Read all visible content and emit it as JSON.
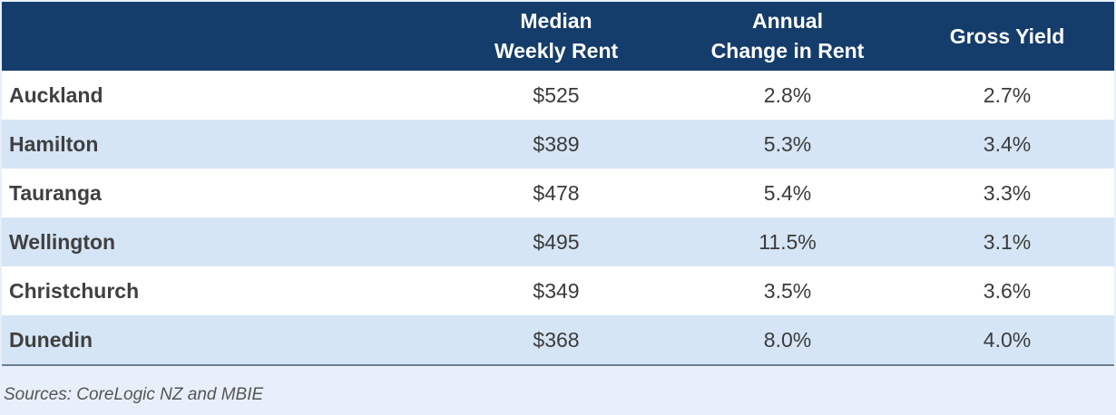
{
  "chart_data": {
    "type": "table",
    "columns": [
      "",
      "Median\nWeekly Rent",
      "Annual\nChange in Rent",
      "Gross Yield"
    ],
    "rows": [
      {
        "city": "Auckland",
        "median_weekly_rent": "$525",
        "annual_change": "2.8%",
        "gross_yield": "2.7%"
      },
      {
        "city": "Hamilton",
        "median_weekly_rent": "$389",
        "annual_change": "5.3%",
        "gross_yield": "3.4%"
      },
      {
        "city": "Tauranga",
        "median_weekly_rent": "$478",
        "annual_change": "5.4%",
        "gross_yield": "3.3%"
      },
      {
        "city": "Wellington",
        "median_weekly_rent": "$495",
        "annual_change": "11.5%",
        "gross_yield": "3.1%"
      },
      {
        "city": "Christchurch",
        "median_weekly_rent": "$349",
        "annual_change": "3.5%",
        "gross_yield": "3.6%"
      },
      {
        "city": "Dunedin",
        "median_weekly_rent": "$368",
        "annual_change": "8.0%",
        "gross_yield": "4.0%"
      }
    ],
    "source": "Sources: CoreLogic NZ and MBIE"
  },
  "colors": {
    "header_bg": "#153d6b",
    "header_text": "#ffffff",
    "row_alt_bg": "#d5e5f5",
    "row_bg": "#ffffff",
    "footer_bg": "#e7f0fa"
  }
}
